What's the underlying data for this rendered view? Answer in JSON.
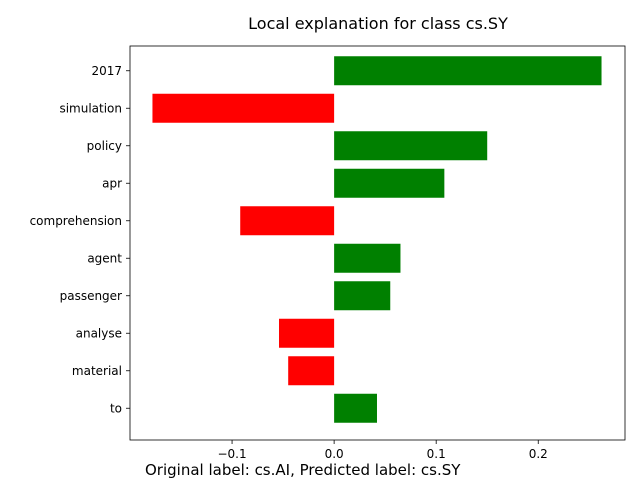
{
  "chart_data": {
    "type": "bar",
    "orientation": "horizontal",
    "title": "Local explanation for class cs.SY",
    "caption": "Original label: cs.AI, Predicted label: cs.SY",
    "categories": [
      "2017",
      "simulation",
      "policy",
      "apr",
      "comprehension",
      "agent",
      "passenger",
      "analyse",
      "material",
      "to"
    ],
    "values": [
      0.262,
      -0.178,
      0.15,
      0.108,
      -0.092,
      0.065,
      0.055,
      -0.054,
      -0.045,
      0.042
    ],
    "xticks": [
      -0.1,
      0.0,
      0.1,
      0.2
    ],
    "xtick_labels": [
      "−0.1",
      "0.0",
      "0.1",
      "0.2"
    ],
    "xlim": [
      -0.2,
      0.285
    ],
    "positive_color": "#008000",
    "negative_color": "#ff0000",
    "grid": false,
    "xlabel": "",
    "ylabel": ""
  }
}
